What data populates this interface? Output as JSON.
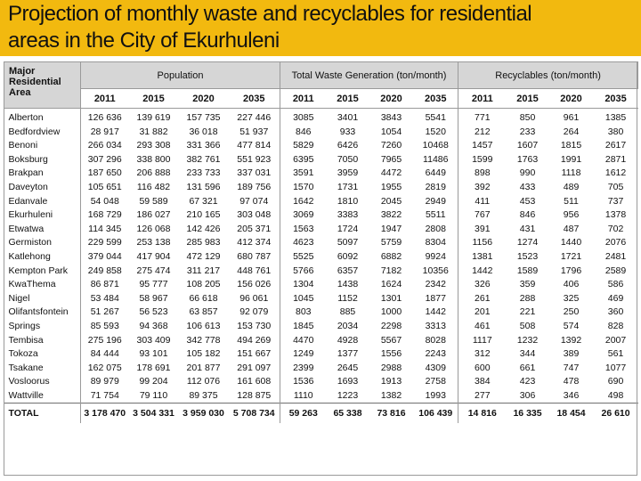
{
  "slide": {
    "title_line1": "Projection of monthly waste and recyclables for residential",
    "title_line2": "areas in the City of Ekurhuleni",
    "title_bg": "#f2b90f"
  },
  "table": {
    "area_header_line1": "Major Residential",
    "area_header_line2": "Area",
    "groups": [
      "Population",
      "Total Waste Generation (ton/month)",
      "Recyclables (ton/month)"
    ],
    "years": [
      "2011",
      "2015",
      "2020",
      "2035",
      "2011",
      "2015",
      "2020",
      "2035",
      "2011",
      "2015",
      "2020",
      "2035"
    ],
    "rows": [
      {
        "area": "Alberton",
        "values": [
          "126 636",
          "139 619",
          "157 735",
          "227 446",
          "3085",
          "3401",
          "3843",
          "5541",
          "771",
          "850",
          "961",
          "1385"
        ]
      },
      {
        "area": "Bedfordview",
        "values": [
          "28 917",
          "31 882",
          "36 018",
          "51 937",
          "846",
          "933",
          "1054",
          "1520",
          "212",
          "233",
          "264",
          "380"
        ]
      },
      {
        "area": "Benoni",
        "values": [
          "266 034",
          "293 308",
          "331 366",
          "477 814",
          "5829",
          "6426",
          "7260",
          "10468",
          "1457",
          "1607",
          "1815",
          "2617"
        ]
      },
      {
        "area": "Boksburg",
        "values": [
          "307 296",
          "338 800",
          "382 761",
          "551 923",
          "6395",
          "7050",
          "7965",
          "11486",
          "1599",
          "1763",
          "1991",
          "2871"
        ]
      },
      {
        "area": "Brakpan",
        "values": [
          "187 650",
          "206 888",
          "233 733",
          "337 031",
          "3591",
          "3959",
          "4472",
          "6449",
          "898",
          "990",
          "1118",
          "1612"
        ]
      },
      {
        "area": "Daveyton",
        "values": [
          "105 651",
          "116 482",
          "131 596",
          "189 756",
          "1570",
          "1731",
          "1955",
          "2819",
          "392",
          "433",
          "489",
          "705"
        ]
      },
      {
        "area": "Edanvale",
        "values": [
          "54 048",
          "59 589",
          "67 321",
          "97 074",
          "1642",
          "1810",
          "2045",
          "2949",
          "411",
          "453",
          "511",
          "737"
        ]
      },
      {
        "area": "Ekurhuleni",
        "values": [
          "168 729",
          "186 027",
          "210 165",
          "303 048",
          "3069",
          "3383",
          "3822",
          "5511",
          "767",
          "846",
          "956",
          "1378"
        ]
      },
      {
        "area": "Etwatwa",
        "values": [
          "114 345",
          "126 068",
          "142 426",
          "205 371",
          "1563",
          "1724",
          "1947",
          "2808",
          "391",
          "431",
          "487",
          "702"
        ]
      },
      {
        "area": "Germiston",
        "values": [
          "229 599",
          "253 138",
          "285 983",
          "412 374",
          "4623",
          "5097",
          "5759",
          "8304",
          "1156",
          "1274",
          "1440",
          "2076"
        ]
      },
      {
        "area": "Katlehong",
        "values": [
          "379 044",
          "417 904",
          "472 129",
          "680 787",
          "5525",
          "6092",
          "6882",
          "9924",
          "1381",
          "1523",
          "1721",
          "2481"
        ]
      },
      {
        "area": "Kempton Park",
        "values": [
          "249 858",
          "275 474",
          "311 217",
          "448 761",
          "5766",
          "6357",
          "7182",
          "10356",
          "1442",
          "1589",
          "1796",
          "2589"
        ]
      },
      {
        "area": "KwaThema",
        "values": [
          "86 871",
          "95 777",
          "108 205",
          "156 026",
          "1304",
          "1438",
          "1624",
          "2342",
          "326",
          "359",
          "406",
          "586"
        ]
      },
      {
        "area": "Nigel",
        "values": [
          "53 484",
          "58 967",
          "66 618",
          "96 061",
          "1045",
          "1152",
          "1301",
          "1877",
          "261",
          "288",
          "325",
          "469"
        ]
      },
      {
        "area": "Olifantsfontein",
        "values": [
          "51 267",
          "56 523",
          "63 857",
          "92 079",
          "803",
          "885",
          "1000",
          "1442",
          "201",
          "221",
          "250",
          "360"
        ]
      },
      {
        "area": "Springs",
        "values": [
          "85 593",
          "94 368",
          "106 613",
          "153 730",
          "1845",
          "2034",
          "2298",
          "3313",
          "461",
          "508",
          "574",
          "828"
        ]
      },
      {
        "area": "Tembisa",
        "values": [
          "275 196",
          "303 409",
          "342 778",
          "494 269",
          "4470",
          "4928",
          "5567",
          "8028",
          "1117",
          "1232",
          "1392",
          "2007"
        ]
      },
      {
        "area": "Tokoza",
        "values": [
          "84 444",
          "93 101",
          "105 182",
          "151 667",
          "1249",
          "1377",
          "1556",
          "2243",
          "312",
          "344",
          "389",
          "561"
        ]
      },
      {
        "area": "Tsakane",
        "values": [
          "162 075",
          "178 691",
          "201 877",
          "291 097",
          "2399",
          "2645",
          "2988",
          "4309",
          "600",
          "661",
          "747",
          "1077"
        ]
      },
      {
        "area": "Vosloorus",
        "values": [
          "89 979",
          "99 204",
          "112 076",
          "161 608",
          "1536",
          "1693",
          "1913",
          "2758",
          "384",
          "423",
          "478",
          "690"
        ]
      },
      {
        "area": "Wattville",
        "values": [
          "71 754",
          "79 110",
          "89 375",
          "128 875",
          "1110",
          "1223",
          "1382",
          "1993",
          "277",
          "306",
          "346",
          "498"
        ]
      }
    ],
    "total": {
      "area": "TOTAL",
      "values": [
        "3 178 470",
        "3 504 331",
        "3 959 030",
        "5 708 734",
        "59 263",
        "65 338",
        "73 816",
        "106 439",
        "14 816",
        "16 335",
        "18 454",
        "26 610"
      ]
    }
  }
}
